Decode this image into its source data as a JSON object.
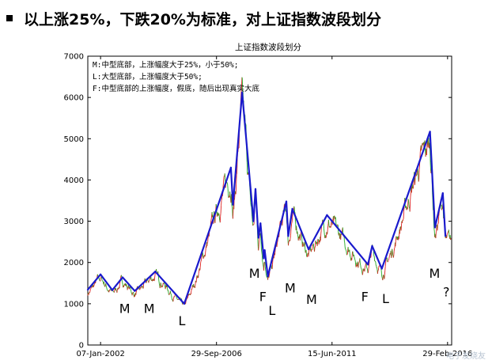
{
  "heading": "以上涨25%，下跌20%为标准，对上证指数波段划分",
  "watermark": "电子发烧友",
  "chart_data": {
    "type": "line",
    "title": "上证指数波段划分",
    "xlabel": "",
    "ylabel": "",
    "x_range": [
      "2001-07-01",
      "2016-04-30"
    ],
    "ylim": [
      0,
      7000
    ],
    "y_ticks": [
      0,
      1000,
      2000,
      3000,
      4000,
      5000,
      6000,
      7000
    ],
    "x_tick_labels": [
      {
        "date": "2002-01-07",
        "label": "07-Jan-2002"
      },
      {
        "date": "2006-09-29",
        "label": "29-Sep-2006"
      },
      {
        "date": "2011-06-15",
        "label": "15-Jun-2011"
      },
      {
        "date": "2016-02-29",
        "label": "29-Feb-2016"
      }
    ],
    "grid": false,
    "legend": {
      "position": "top-left",
      "entries": [
        "M:中型底部，上涨幅度大于25%，小于50%;",
        "L:大型底部，上涨幅度大于50%;",
        "F:中型底部的上涨幅度，假底，随后出现真实大底"
      ]
    },
    "series": [
      {
        "role": "wave-segments",
        "color": "#1a1acc",
        "points": [
          [
            "2001-07-01",
            1340
          ],
          [
            "2002-01-07",
            1710
          ],
          [
            "2002-07-01",
            1330
          ],
          [
            "2002-12-01",
            1640
          ],
          [
            "2003-06-01",
            1310
          ],
          [
            "2004-04-01",
            1780
          ],
          [
            "2005-06-06",
            1000
          ],
          [
            "2007-05-01",
            4300
          ],
          [
            "2007-06-01",
            3400
          ],
          [
            "2007-10-16",
            6120
          ],
          [
            "2008-04-01",
            3000
          ],
          [
            "2008-05-01",
            3780
          ],
          [
            "2008-06-15",
            2600
          ],
          [
            "2008-07-15",
            2950
          ],
          [
            "2008-09-01",
            2100
          ],
          [
            "2008-09-15",
            2300
          ],
          [
            "2008-11-01",
            1665
          ],
          [
            "2009-08-04",
            3478
          ],
          [
            "2009-09-01",
            2640
          ],
          [
            "2009-11-01",
            3300
          ],
          [
            "2010-07-01",
            2320
          ],
          [
            "2011-04-01",
            3150
          ],
          [
            "2012-12-01",
            1950
          ],
          [
            "2013-02-01",
            2400
          ],
          [
            "2013-06-25",
            1850
          ],
          [
            "2015-06-12",
            5170
          ],
          [
            "2015-08-26",
            2850
          ],
          [
            "2015-12-20",
            3680
          ],
          [
            "2016-01-28",
            2640
          ]
        ]
      },
      {
        "role": "price-rising",
        "color": "#dd2222"
      },
      {
        "role": "price-falling",
        "color": "#22aa22"
      }
    ],
    "annotations": [
      {
        "label": "M",
        "date": "2003-01-01",
        "y": 780
      },
      {
        "label": "M",
        "date": "2004-01-01",
        "y": 780
      },
      {
        "label": "L",
        "date": "2005-05-01",
        "y": 480
      },
      {
        "label": "M",
        "date": "2008-04-15",
        "y": 1630
      },
      {
        "label": "F",
        "date": "2008-08-20",
        "y": 1060
      },
      {
        "label": "L",
        "date": "2009-01-01",
        "y": 730
      },
      {
        "label": "M",
        "date": "2009-10-01",
        "y": 1280
      },
      {
        "label": "M",
        "date": "2010-08-15",
        "y": 1000
      },
      {
        "label": "F",
        "date": "2012-10-15",
        "y": 1060
      },
      {
        "label": "L",
        "date": "2013-08-20",
        "y": 1020
      },
      {
        "label": "M",
        "date": "2015-08-20",
        "y": 1630
      },
      {
        "label": "?",
        "date": "2016-02-10",
        "y": 1180
      }
    ]
  }
}
